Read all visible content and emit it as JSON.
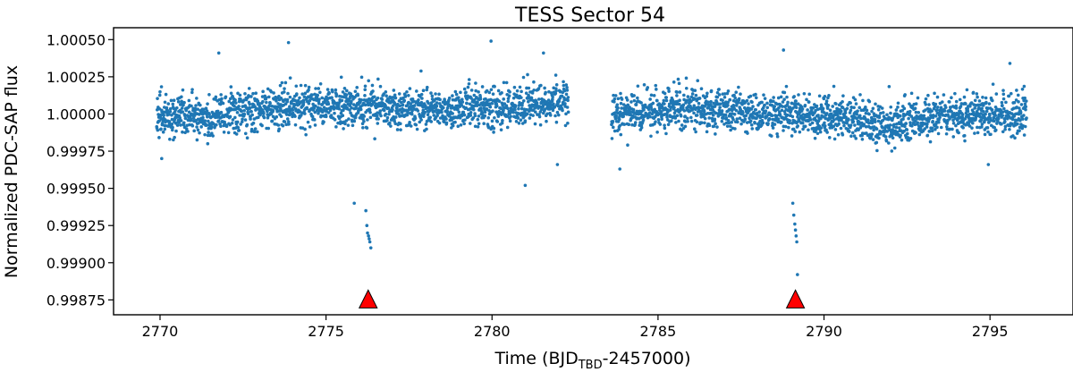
{
  "chart_data": {
    "type": "scatter",
    "title": "TESS Sector 54",
    "xlabel": {
      "prefix": "Time (BJD",
      "subscript": "TBD",
      "suffix": "-2457000)"
    },
    "ylabel": "Normalized PDC-SAP flux",
    "xlim": [
      2768.6,
      2797.5
    ],
    "ylim": [
      0.99865,
      1.00058
    ],
    "xticks": [
      2770,
      2775,
      2780,
      2785,
      2790,
      2795
    ],
    "xtick_labels": [
      "2770",
      "2775",
      "2780",
      "2785",
      "2790",
      "2795"
    ],
    "yticks": [
      0.99875,
      0.999,
      0.99925,
      0.9995,
      0.99975,
      1.0,
      1.00025,
      1.0005
    ],
    "ytick_labels": [
      "0.99875",
      "0.99900",
      "0.99925",
      "0.99950",
      "0.99975",
      "1.00000",
      "1.00025",
      "1.00050"
    ],
    "grid": false,
    "legend": "none",
    "series": [
      {
        "marker_color": "#1f77b4",
        "segments": [
          {
            "x_start": 2769.9,
            "x_end": 2782.3,
            "baseline": [
              [
                2770,
                0.99998
              ],
              [
                2772,
                1.0
              ],
              [
                2774,
                1.00004
              ],
              [
                2776,
                1.00006
              ],
              [
                2778,
                1.00003
              ],
              [
                2780,
                1.00004
              ],
              [
                2782.3,
                1.00008
              ]
            ],
            "scatter": 0.00011
          },
          {
            "x_start": 2783.6,
            "x_end": 2796.1,
            "baseline": [
              [
                2783.6,
                1.0
              ],
              [
                2786,
                1.00005
              ],
              [
                2788,
                1.0
              ],
              [
                2790,
                0.99999
              ],
              [
                2792,
                0.99992
              ],
              [
                2794,
                1.00001
              ],
              [
                2796.1,
                1.0
              ]
            ],
            "scatter": 0.00011
          }
        ],
        "transits": [
          {
            "x": [
              2776.2,
              2776.23,
              2776.25,
              2776.28,
              2776.3,
              2776.32,
              2776.35
            ],
            "y": [
              0.99935,
              0.99925,
              0.9992,
              0.99918,
              0.99916,
              0.99914,
              0.9991
            ]
          },
          {
            "x": [
              2789.06,
              2789.09,
              2789.12,
              2789.14,
              2789.16,
              2789.18,
              2789.2
            ],
            "y": [
              0.9994,
              0.99932,
              0.99926,
              0.99922,
              0.99918,
              0.99914,
              0.99892
            ]
          }
        ],
        "outliers": [
          {
            "x": 2773.87,
            "y": 1.00048
          },
          {
            "x": 2779.97,
            "y": 1.00049
          },
          {
            "x": 2771.77,
            "y": 1.00041
          },
          {
            "x": 2781.55,
            "y": 1.00041
          },
          {
            "x": 2781.0,
            "y": 0.99952
          },
          {
            "x": 2775.85,
            "y": 0.9994
          },
          {
            "x": 2781.97,
            "y": 0.99966
          },
          {
            "x": 2783.85,
            "y": 0.99963
          },
          {
            "x": 2788.78,
            "y": 1.00043
          },
          {
            "x": 2795.6,
            "y": 1.00034
          },
          {
            "x": 2794.95,
            "y": 0.99966
          },
          {
            "x": 2770.05,
            "y": 0.9997
          }
        ]
      }
    ],
    "markers": [
      {
        "x": 2776.27,
        "y": 0.99875,
        "shape": "triangle",
        "color": "#ff0000"
      },
      {
        "x": 2789.14,
        "y": 0.99875,
        "shape": "triangle",
        "color": "#ff0000"
      }
    ]
  }
}
